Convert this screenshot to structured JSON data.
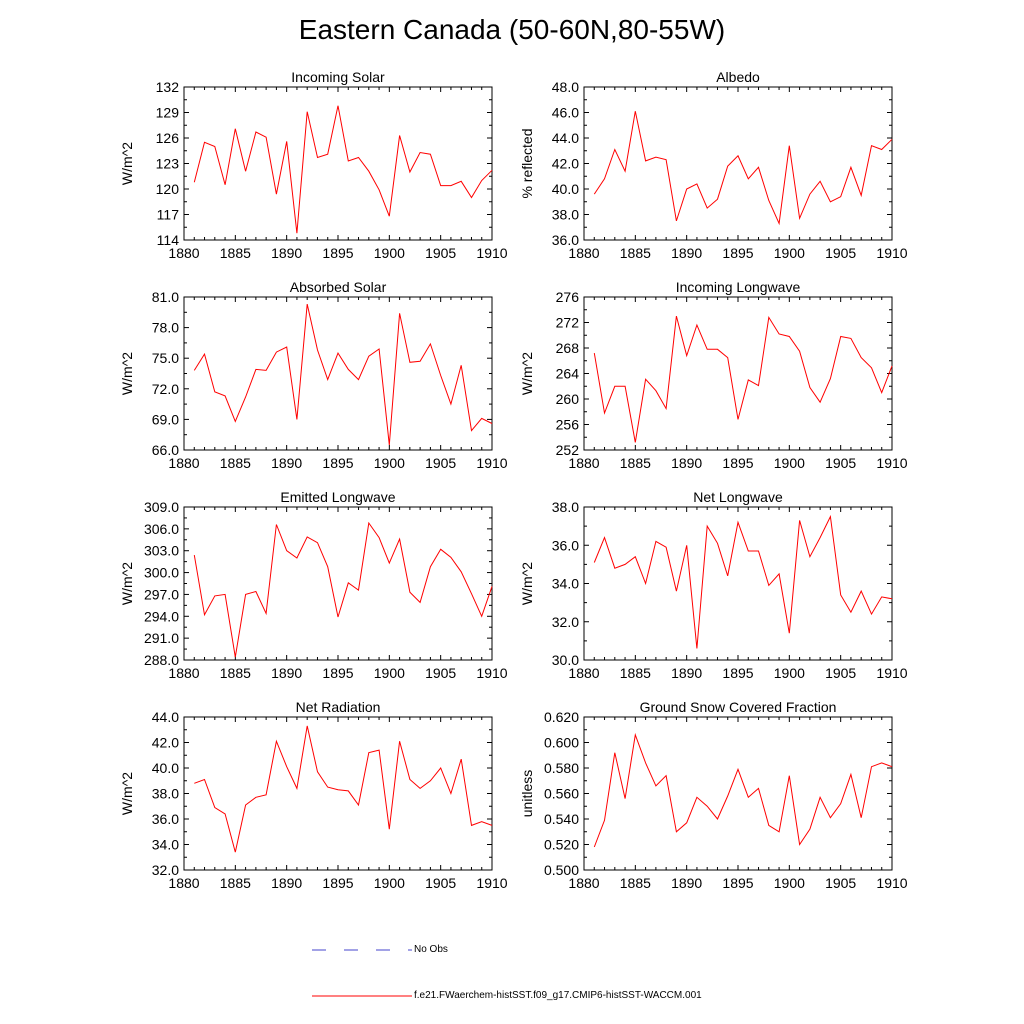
{
  "title": "Eastern Canada (50-60N,80-55W)",
  "legend": {
    "obs_label": "No Obs",
    "obs_color": "#4444cc",
    "model_label": "f.e21.FWaerchem-histSST.f09_g17.CMIP6-histSST-WACCM.001",
    "model_color": "#ff0000"
  },
  "chart_data": [
    {
      "type": "line",
      "title": "Incoming Solar",
      "ylabel": "W/m^2",
      "xlim": [
        1880,
        1910
      ],
      "ylim": [
        114,
        132
      ],
      "xticks": [
        "1880",
        "1885",
        "1890",
        "1895",
        "1900",
        "1905",
        "1910"
      ],
      "yticks": [
        "114",
        "117",
        "120",
        "123",
        "126",
        "129",
        "132"
      ],
      "series": [
        {
          "x": [
            1881,
            1882,
            1883,
            1884,
            1885,
            1886,
            1887,
            1888,
            1889,
            1890,
            1891,
            1892,
            1893,
            1894,
            1895,
            1896,
            1897,
            1898,
            1899,
            1900,
            1901,
            1902,
            1903,
            1904,
            1905,
            1906,
            1907,
            1908,
            1909,
            1910
          ],
          "values": [
            120.8,
            125.5,
            125.0,
            120.5,
            127.1,
            122.1,
            126.7,
            126.1,
            119.4,
            125.6,
            114.8,
            129.1,
            123.7,
            124.1,
            129.8,
            123.3,
            123.7,
            122.1,
            119.9,
            116.8,
            126.3,
            122.0,
            124.3,
            124.1,
            120.4,
            120.4,
            120.9,
            119.0,
            121.0,
            122.2
          ]
        }
      ]
    },
    {
      "type": "line",
      "title": "Albedo",
      "ylabel": "% reflected",
      "xlim": [
        1880,
        1910
      ],
      "ylim": [
        36,
        48
      ],
      "xticks": [
        "1880",
        "1885",
        "1890",
        "1895",
        "1900",
        "1905",
        "1910"
      ],
      "yticks": [
        "36.0",
        "38.0",
        "40.0",
        "42.0",
        "44.0",
        "46.0",
        "48.0"
      ],
      "series": [
        {
          "x": [
            1881,
            1882,
            1883,
            1884,
            1885,
            1886,
            1887,
            1888,
            1889,
            1890,
            1891,
            1892,
            1893,
            1894,
            1895,
            1896,
            1897,
            1898,
            1899,
            1900,
            1901,
            1902,
            1903,
            1904,
            1905,
            1906,
            1907,
            1908,
            1909,
            1910
          ],
          "values": [
            39.6,
            40.8,
            43.1,
            41.4,
            46.1,
            42.2,
            42.5,
            42.3,
            37.5,
            40.0,
            40.4,
            38.5,
            39.2,
            41.8,
            42.6,
            40.8,
            41.7,
            39.1,
            37.3,
            43.4,
            37.7,
            39.6,
            40.6,
            39.0,
            39.4,
            41.7,
            39.5,
            43.4,
            43.1,
            43.9
          ]
        }
      ]
    },
    {
      "type": "line",
      "title": "Absorbed Solar",
      "ylabel": "W/m^2",
      "xlim": [
        1880,
        1910
      ],
      "ylim": [
        66,
        81
      ],
      "xticks": [
        "1880",
        "1885",
        "1890",
        "1895",
        "1900",
        "1905",
        "1910"
      ],
      "yticks": [
        "66.0",
        "69.0",
        "72.0",
        "75.0",
        "78.0",
        "81.0"
      ],
      "series": [
        {
          "x": [
            1881,
            1882,
            1883,
            1884,
            1885,
            1886,
            1887,
            1888,
            1889,
            1890,
            1891,
            1892,
            1893,
            1894,
            1895,
            1896,
            1897,
            1898,
            1899,
            1900,
            1901,
            1902,
            1903,
            1904,
            1905,
            1906,
            1907,
            1908,
            1909,
            1910
          ],
          "values": [
            73.8,
            75.4,
            71.7,
            71.3,
            68.8,
            71.2,
            73.9,
            73.8,
            75.6,
            76.1,
            69.0,
            80.3,
            75.8,
            72.9,
            75.5,
            73.9,
            72.9,
            75.2,
            75.9,
            66.5,
            79.4,
            74.6,
            74.7,
            76.4,
            73.3,
            70.5,
            74.3,
            67.9,
            69.1,
            68.6
          ]
        }
      ]
    },
    {
      "type": "line",
      "title": "Incoming Longwave",
      "ylabel": "W/m^2",
      "xlim": [
        1880,
        1910
      ],
      "ylim": [
        252,
        276
      ],
      "xticks": [
        "1880",
        "1885",
        "1890",
        "1895",
        "1900",
        "1905",
        "1910"
      ],
      "yticks": [
        "252",
        "256",
        "260",
        "264",
        "268",
        "272",
        "276"
      ],
      "series": [
        {
          "x": [
            1881,
            1882,
            1883,
            1884,
            1885,
            1886,
            1887,
            1888,
            1889,
            1890,
            1891,
            1892,
            1893,
            1894,
            1895,
            1896,
            1897,
            1898,
            1899,
            1900,
            1901,
            1902,
            1903,
            1904,
            1905,
            1906,
            1907,
            1908,
            1909,
            1910
          ],
          "values": [
            267.2,
            257.8,
            262.0,
            262.0,
            253.2,
            263.1,
            261.3,
            258.5,
            273.0,
            266.8,
            271.6,
            267.8,
            267.8,
            266.5,
            256.8,
            263.0,
            262.1,
            272.8,
            270.2,
            269.8,
            267.5,
            261.8,
            259.5,
            263.2,
            269.8,
            269.5,
            266.5,
            264.9,
            261.0,
            265.2
          ]
        }
      ]
    },
    {
      "type": "line",
      "title": "Emitted Longwave",
      "ylabel": "W/m^2",
      "xlim": [
        1880,
        1910
      ],
      "ylim": [
        288,
        309
      ],
      "xticks": [
        "1880",
        "1885",
        "1890",
        "1895",
        "1900",
        "1905",
        "1910"
      ],
      "yticks": [
        "288.0",
        "291.0",
        "294.0",
        "297.0",
        "300.0",
        "303.0",
        "306.0",
        "309.0"
      ],
      "series": [
        {
          "x": [
            1881,
            1882,
            1883,
            1884,
            1885,
            1886,
            1887,
            1888,
            1889,
            1890,
            1891,
            1892,
            1893,
            1894,
            1895,
            1896,
            1897,
            1898,
            1899,
            1900,
            1901,
            1902,
            1903,
            1904,
            1905,
            1906,
            1907,
            1908,
            1909,
            1910
          ],
          "values": [
            302.4,
            294.2,
            296.8,
            297.0,
            288.4,
            297.0,
            297.4,
            294.4,
            306.6,
            303.0,
            302.0,
            304.9,
            304.1,
            300.8,
            293.9,
            298.6,
            297.6,
            306.8,
            304.8,
            301.3,
            304.6,
            297.3,
            295.9,
            300.8,
            303.2,
            302.1,
            300.1,
            297.1,
            294.0,
            298.1
          ]
        }
      ]
    },
    {
      "type": "line",
      "title": "Net Longwave",
      "ylabel": "W/m^2",
      "xlim": [
        1880,
        1910
      ],
      "ylim": [
        30,
        38
      ],
      "xticks": [
        "1880",
        "1885",
        "1890",
        "1895",
        "1900",
        "1905",
        "1910"
      ],
      "yticks": [
        "30.0",
        "32.0",
        "34.0",
        "36.0",
        "38.0"
      ],
      "series": [
        {
          "x": [
            1881,
            1882,
            1883,
            1884,
            1885,
            1886,
            1887,
            1888,
            1889,
            1890,
            1891,
            1892,
            1893,
            1894,
            1895,
            1896,
            1897,
            1898,
            1899,
            1900,
            1901,
            1902,
            1903,
            1904,
            1905,
            1906,
            1907,
            1908,
            1909,
            1910
          ],
          "values": [
            35.1,
            36.4,
            34.8,
            35.0,
            35.4,
            34.0,
            36.2,
            35.9,
            33.6,
            36.0,
            30.6,
            37.0,
            36.1,
            34.4,
            37.2,
            35.7,
            35.7,
            33.9,
            34.5,
            31.4,
            37.3,
            35.4,
            36.4,
            37.5,
            33.4,
            32.5,
            33.6,
            32.4,
            33.3,
            33.2
          ]
        }
      ]
    },
    {
      "type": "line",
      "title": "Net Radiation",
      "ylabel": "W/m^2",
      "xlim": [
        1880,
        1910
      ],
      "ylim": [
        32,
        44
      ],
      "xticks": [
        "1880",
        "1885",
        "1890",
        "1895",
        "1900",
        "1905",
        "1910"
      ],
      "yticks": [
        "32.0",
        "34.0",
        "36.0",
        "38.0",
        "40.0",
        "42.0",
        "44.0"
      ],
      "series": [
        {
          "x": [
            1881,
            1882,
            1883,
            1884,
            1885,
            1886,
            1887,
            1888,
            1889,
            1890,
            1891,
            1892,
            1893,
            1894,
            1895,
            1896,
            1897,
            1898,
            1899,
            1900,
            1901,
            1902,
            1903,
            1904,
            1905,
            1906,
            1907,
            1908,
            1909,
            1910
          ],
          "values": [
            38.8,
            39.1,
            36.9,
            36.4,
            33.4,
            37.1,
            37.7,
            37.9,
            42.1,
            40.1,
            38.4,
            43.3,
            39.7,
            38.5,
            38.3,
            38.2,
            37.1,
            41.2,
            41.4,
            35.2,
            42.1,
            39.1,
            38.4,
            39.0,
            40.0,
            38.0,
            40.7,
            35.5,
            35.8,
            35.5
          ]
        }
      ]
    },
    {
      "type": "line",
      "title": "Ground Snow Covered Fraction",
      "ylabel": "unitless",
      "xlim": [
        1880,
        1910
      ],
      "ylim": [
        0.5,
        0.62
      ],
      "xticks": [
        "1880",
        "1885",
        "1890",
        "1895",
        "1900",
        "1905",
        "1910"
      ],
      "yticks": [
        "0.500",
        "0.520",
        "0.540",
        "0.560",
        "0.580",
        "0.600",
        "0.620"
      ],
      "series": [
        {
          "x": [
            1881,
            1882,
            1883,
            1884,
            1885,
            1886,
            1887,
            1888,
            1889,
            1890,
            1891,
            1892,
            1893,
            1894,
            1895,
            1896,
            1897,
            1898,
            1899,
            1900,
            1901,
            1902,
            1903,
            1904,
            1905,
            1906,
            1907,
            1908,
            1909,
            1910
          ],
          "values": [
            0.518,
            0.539,
            0.592,
            0.556,
            0.606,
            0.584,
            0.566,
            0.574,
            0.53,
            0.537,
            0.557,
            0.55,
            0.54,
            0.558,
            0.579,
            0.557,
            0.564,
            0.535,
            0.53,
            0.574,
            0.52,
            0.532,
            0.557,
            0.541,
            0.552,
            0.575,
            0.541,
            0.581,
            0.584,
            0.581
          ]
        }
      ]
    }
  ]
}
